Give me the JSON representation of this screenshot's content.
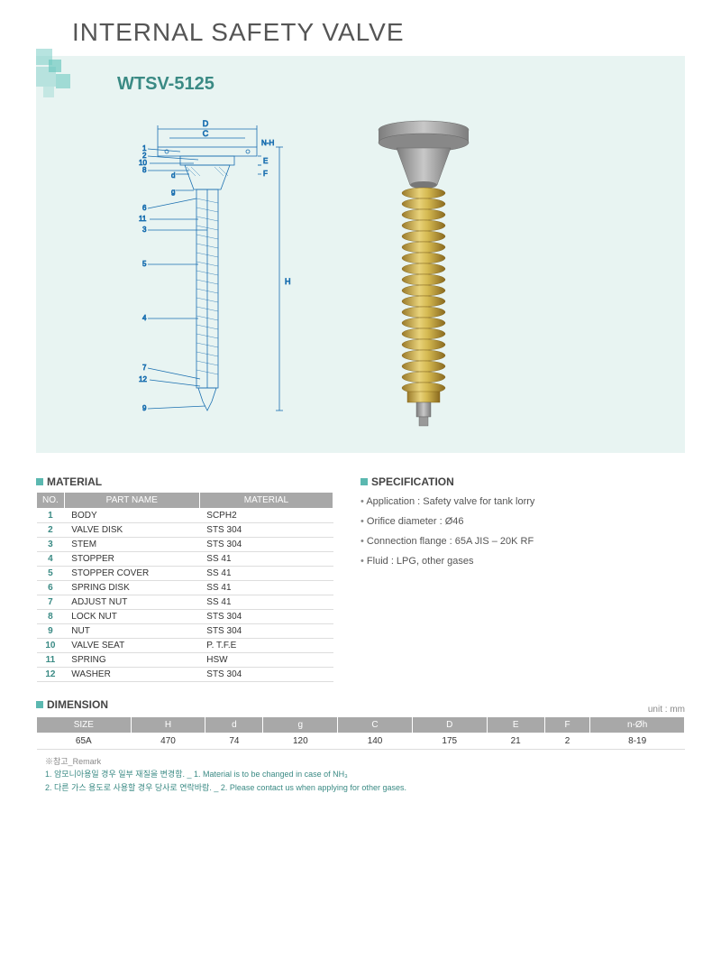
{
  "page_title": "INTERNAL SAFETY VALVE",
  "model": "WTSV-5125",
  "colors": {
    "hero_bg": "#e8f4f2",
    "accent": "#5bb8b0",
    "accent_dark": "#3a8a84",
    "th_bg": "#a8a8a8",
    "diagram_line": "#1a6fb0",
    "spring_gold": "#c9a94a",
    "spring_highlight": "#e8d27a",
    "flange_gray": "#9a9a9a"
  },
  "diagram": {
    "dim_labels": [
      "D",
      "C",
      "N-H",
      "d",
      "g",
      "E",
      "F",
      "H"
    ],
    "callout_numbers": [
      "1",
      "2",
      "3",
      "4",
      "5",
      "6",
      "7",
      "8",
      "9",
      "10",
      "11",
      "12"
    ]
  },
  "material": {
    "heading": "MATERIAL",
    "columns": [
      "NO.",
      "PART NAME",
      "MATERIAL"
    ],
    "rows": [
      {
        "no": "1",
        "part": "BODY",
        "mat": "SCPH2"
      },
      {
        "no": "2",
        "part": "VALVE DISK",
        "mat": "STS 304"
      },
      {
        "no": "3",
        "part": "STEM",
        "mat": "STS 304"
      },
      {
        "no": "4",
        "part": "STOPPER",
        "mat": "SS 41"
      },
      {
        "no": "5",
        "part": "STOPPER COVER",
        "mat": "SS 41"
      },
      {
        "no": "6",
        "part": "SPRING DISK",
        "mat": "SS 41"
      },
      {
        "no": "7",
        "part": "ADJUST NUT",
        "mat": "SS 41"
      },
      {
        "no": "8",
        "part": "LOCK NUT",
        "mat": "STS 304"
      },
      {
        "no": "9",
        "part": "NUT",
        "mat": "STS 304"
      },
      {
        "no": "10",
        "part": "VALVE SEAT",
        "mat": "P. T.F.E"
      },
      {
        "no": "11",
        "part": "SPRING",
        "mat": "HSW"
      },
      {
        "no": "12",
        "part": "WASHER",
        "mat": "STS 304"
      }
    ]
  },
  "specification": {
    "heading": "SPECIFICATION",
    "items": [
      "Application : Safety valve for tank lorry",
      "Orifice diameter : Ø46",
      "Connection  flange : 65A JIS – 20K RF",
      "Fluid : LPG, other gases"
    ]
  },
  "dimension": {
    "heading": "DIMENSION",
    "unit_label": "unit : mm",
    "columns": [
      "SIZE",
      "H",
      "d",
      "g",
      "C",
      "D",
      "E",
      "F",
      "n-Øh"
    ],
    "rows": [
      [
        "65A",
        "470",
        "74",
        "120",
        "140",
        "175",
        "21",
        "2",
        "8-19"
      ]
    ]
  },
  "remark": {
    "title": "※참고_Remark",
    "lines": [
      "1. 암모니아용일 경우 일부 재질을 변경함. _ 1. Material is to be changed in case of  NH₃",
      "2. 다른 가스 용도로 사용할 경우 당사로 연락바람. _ 2. Please contact us when applying for other gases."
    ]
  }
}
